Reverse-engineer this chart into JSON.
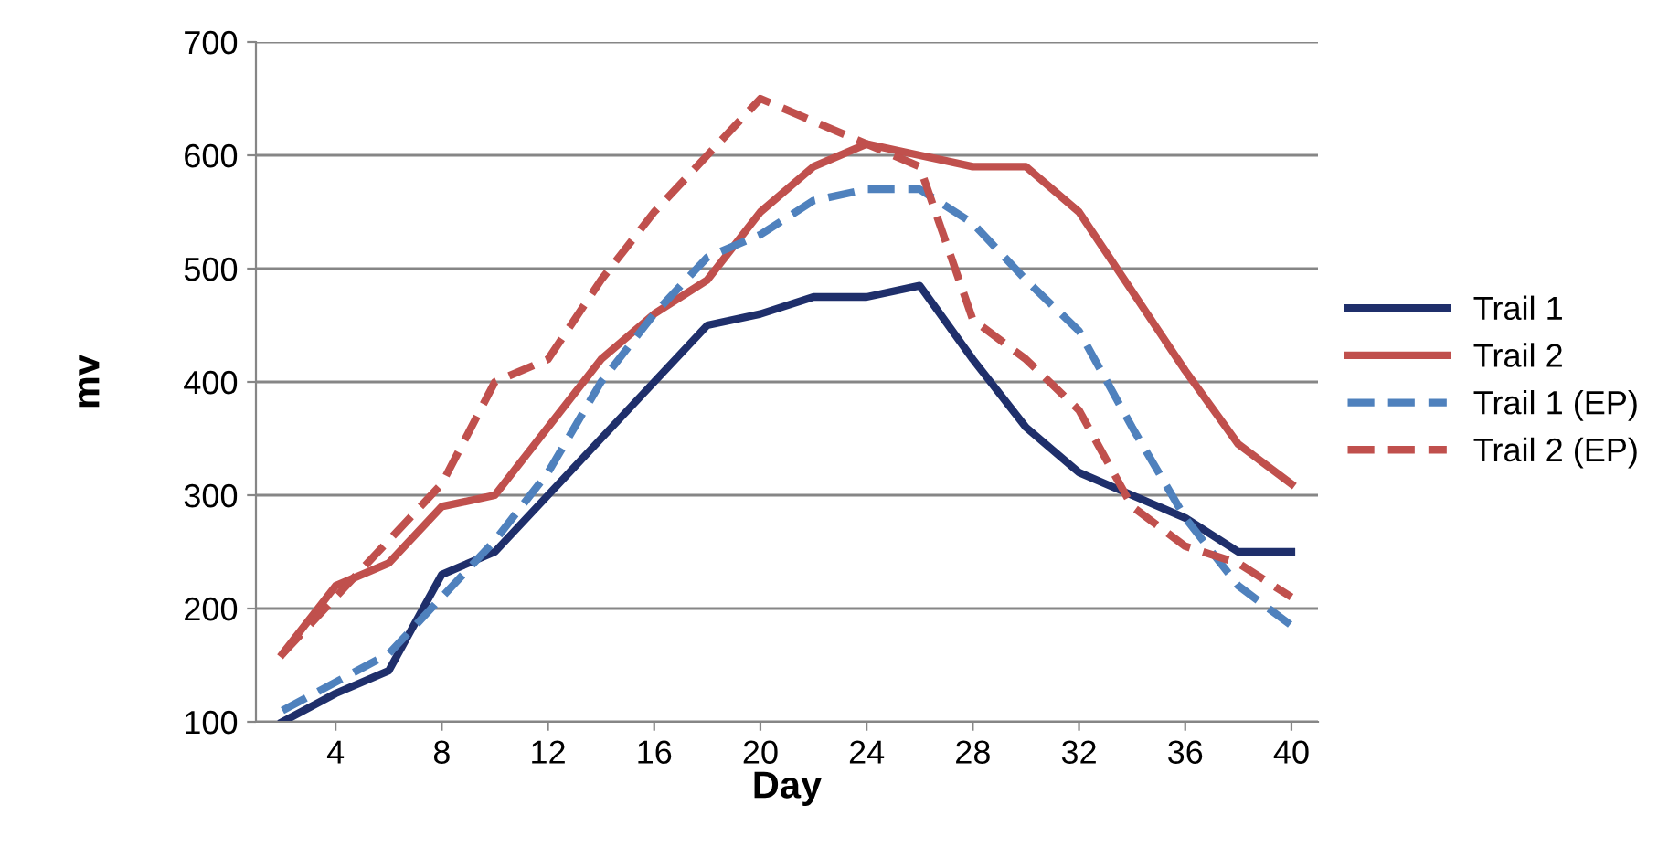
{
  "chart_data": {
    "type": "line",
    "xlabel": "Day",
    "ylabel": "mv",
    "x": [
      2,
      4,
      6,
      8,
      10,
      12,
      14,
      16,
      18,
      20,
      22,
      24,
      26,
      28,
      30,
      32,
      34,
      36,
      38,
      40
    ],
    "xlim": [
      1,
      41
    ],
    "xticks": [
      4,
      8,
      12,
      16,
      20,
      24,
      28,
      32,
      36,
      40
    ],
    "ylim": [
      100,
      700
    ],
    "yticks": [
      100,
      200,
      300,
      400,
      500,
      600,
      700
    ],
    "grid": "y",
    "legend": "right",
    "marker": "none",
    "series": [
      {
        "name": "Trail 1",
        "color": "#1f2f6b",
        "line_style": "solid",
        "values": [
          100,
          125,
          145,
          230,
          250,
          300,
          350,
          400,
          450,
          460,
          475,
          475,
          485,
          420,
          360,
          320,
          300,
          280,
          250,
          250
        ]
      },
      {
        "name": "Trail 2",
        "color": "#c0504d",
        "line_style": "solid",
        "values": [
          160,
          220,
          240,
          290,
          300,
          360,
          420,
          460,
          490,
          550,
          590,
          610,
          600,
          590,
          590,
          550,
          480,
          410,
          345,
          310
        ]
      },
      {
        "name": "Trail 1 (EP)",
        "color": "#4f81bd",
        "line_style": "dashed",
        "values": [
          110,
          135,
          160,
          210,
          260,
          320,
          400,
          460,
          510,
          530,
          560,
          570,
          570,
          540,
          490,
          445,
          360,
          280,
          220,
          185
        ]
      },
      {
        "name": "Trail 2 (EP)",
        "color": "#c0504d",
        "line_style": "dashed",
        "values": [
          160,
          210,
          260,
          310,
          400,
          420,
          490,
          550,
          600,
          650,
          630,
          610,
          590,
          455,
          420,
          375,
          290,
          255,
          240,
          210
        ]
      }
    ]
  }
}
